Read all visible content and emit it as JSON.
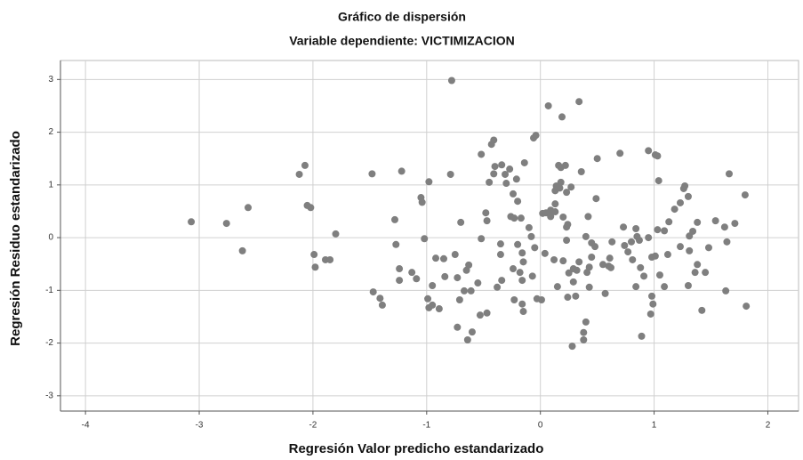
{
  "chart_data": {
    "type": "scatter",
    "title": "Gráfico de dispersión",
    "subtitle": "Variable dependiente: VICTIMIZACION",
    "x_label": "Regresión Valor predicho estandarizado",
    "y_label": "Regresión Residuo estandarizado",
    "color": "#7f7f7f",
    "grid": true,
    "xlim": [
      -4.22,
      2.27
    ],
    "ylim": [
      -3.29,
      3.36
    ],
    "xticks": [
      -4,
      -3,
      -2,
      -1,
      0,
      1,
      2
    ],
    "yticks": [
      -3,
      -2,
      -1,
      0,
      1,
      2,
      3
    ],
    "x": [
      -3.07,
      -2.76,
      -2.62,
      -2.57,
      -2.12,
      -2.07,
      -2.05,
      -2.02,
      -1.99,
      -1.98,
      -1.89,
      -1.85,
      -1.8,
      -1.48,
      -1.47,
      -1.41,
      -1.39,
      -1.22,
      -1.28,
      -1.27,
      -1.24,
      -1.24,
      -1.13,
      -1.09,
      -1.05,
      -1.04,
      -1.02,
      -0.98,
      -0.99,
      -0.98,
      -0.95,
      -0.95,
      -0.92,
      -0.89,
      -0.85,
      -0.84,
      -0.78,
      -0.79,
      -0.75,
      -0.73,
      -0.71,
      -0.73,
      -0.7,
      -0.67,
      -0.65,
      -0.63,
      -0.64,
      -0.61,
      -0.6,
      -0.55,
      -0.53,
      -0.47,
      -0.52,
      -0.48,
      -0.47,
      -0.52,
      -0.45,
      -0.43,
      -0.41,
      -0.41,
      -0.4,
      -0.38,
      -0.34,
      -0.35,
      -0.35,
      -0.34,
      -0.31,
      -0.3,
      -0.27,
      -0.24,
      -0.26,
      -0.23,
      -0.24,
      -0.23,
      -0.21,
      -0.2,
      -0.2,
      -0.18,
      -0.17,
      -0.16,
      -0.16,
      -0.15,
      -0.16,
      -0.15,
      -0.14,
      -0.1,
      -0.08,
      -0.07,
      -0.05,
      -0.06,
      -0.04,
      -0.03,
      0.01,
      0.02,
      0.04,
      0.05,
      0.07,
      0.09,
      0.09,
      0.12,
      0.13,
      0.13,
      0.13,
      0.14,
      0.15,
      0.16,
      0.17,
      0.18,
      0.18,
      0.19,
      0.2,
      0.2,
      0.22,
      0.23,
      0.23,
      0.23,
      0.24,
      0.24,
      0.25,
      0.27,
      0.28,
      0.29,
      0.29,
      0.31,
      0.32,
      0.34,
      0.34,
      0.36,
      0.38,
      0.38,
      0.4,
      0.4,
      0.41,
      0.42,
      0.43,
      0.43,
      0.45,
      0.45,
      0.48,
      0.49,
      0.5,
      0.55,
      0.57,
      0.6,
      0.61,
      0.62,
      0.63,
      0.7,
      0.73,
      0.74,
      0.77,
      0.8,
      0.81,
      0.84,
      0.84,
      0.85,
      0.87,
      0.88,
      0.89,
      0.91,
      0.95,
      0.95,
      0.97,
      0.98,
      0.98,
      0.99,
      1.01,
      1.01,
      1.03,
      1.03,
      1.04,
      1.05,
      1.09,
      1.09,
      1.12,
      1.13,
      1.18,
      1.23,
      1.23,
      1.26,
      1.27,
      1.3,
      1.3,
      1.31,
      1.31,
      1.34,
      1.36,
      1.38,
      1.38,
      1.42,
      1.45,
      1.48,
      1.54,
      1.62,
      1.63,
      1.64,
      1.66,
      1.71,
      1.8,
      1.81
    ],
    "values": [
      0.3,
      0.27,
      -0.25,
      0.57,
      1.2,
      1.37,
      0.61,
      0.57,
      -0.32,
      -0.56,
      -0.42,
      -0.42,
      0.07,
      1.21,
      -1.03,
      -1.15,
      -1.28,
      1.26,
      0.34,
      -0.13,
      -0.59,
      -0.81,
      -0.66,
      -0.78,
      0.76,
      0.67,
      -0.02,
      1.06,
      -1.16,
      -1.33,
      -1.28,
      -0.91,
      -0.39,
      -1.35,
      -0.4,
      -0.74,
      2.98,
      1.2,
      -0.32,
      -0.76,
      -1.18,
      -1.7,
      0.29,
      -1.01,
      -0.62,
      -0.52,
      -1.94,
      -1.01,
      -1.79,
      -0.86,
      -1.47,
      -1.43,
      -0.02,
      0.47,
      0.32,
      1.58,
      1.05,
      1.77,
      1.85,
      1.21,
      1.35,
      -0.94,
      1.38,
      -0.12,
      -0.32,
      -0.81,
      1.2,
      1.03,
      1.3,
      0.83,
      0.4,
      0.37,
      -0.59,
      -1.18,
      1.11,
      0.69,
      -0.13,
      -0.66,
      0.37,
      -0.81,
      -1.26,
      -1.4,
      -0.29,
      -0.46,
      1.42,
      0.19,
      0.02,
      -0.73,
      -0.19,
      1.89,
      1.94,
      -1.16,
      -1.18,
      0.46,
      -0.3,
      0.47,
      2.5,
      0.4,
      0.52,
      -0.42,
      0.49,
      0.89,
      0.64,
      0.98,
      -0.93,
      1.37,
      0.94,
      1.33,
      1.05,
      2.29,
      -0.44,
      0.39,
      1.37,
      0.86,
      0.2,
      -0.05,
      0.25,
      -1.13,
      -0.67,
      0.96,
      -2.06,
      -0.84,
      -0.59,
      -1.11,
      -0.62,
      2.58,
      -0.46,
      1.25,
      -1.94,
      -1.8,
      -1.6,
      0.02,
      -0.66,
      0.4,
      -0.56,
      -0.94,
      -0.1,
      -0.37,
      -0.17,
      0.74,
      1.5,
      -0.51,
      -1.06,
      -0.54,
      -0.39,
      -0.57,
      -0.08,
      1.6,
      0.2,
      -0.15,
      -0.27,
      -0.08,
      -0.42,
      -0.93,
      0.17,
      0.02,
      -0.05,
      -0.57,
      -1.87,
      -0.73,
      1.65,
      0.0,
      -1.45,
      -0.37,
      -1.11,
      -1.26,
      -0.35,
      1.57,
      1.55,
      0.15,
      1.08,
      -0.71,
      -0.93,
      0.13,
      -0.32,
      0.3,
      0.54,
      0.66,
      -0.17,
      0.93,
      0.98,
      0.78,
      -0.91,
      0.03,
      -0.25,
      0.12,
      -0.66,
      0.29,
      -0.51,
      -1.38,
      -0.66,
      -0.19,
      0.32,
      0.2,
      -1.01,
      -0.08,
      1.21,
      0.27,
      0.81,
      -1.3
    ]
  }
}
